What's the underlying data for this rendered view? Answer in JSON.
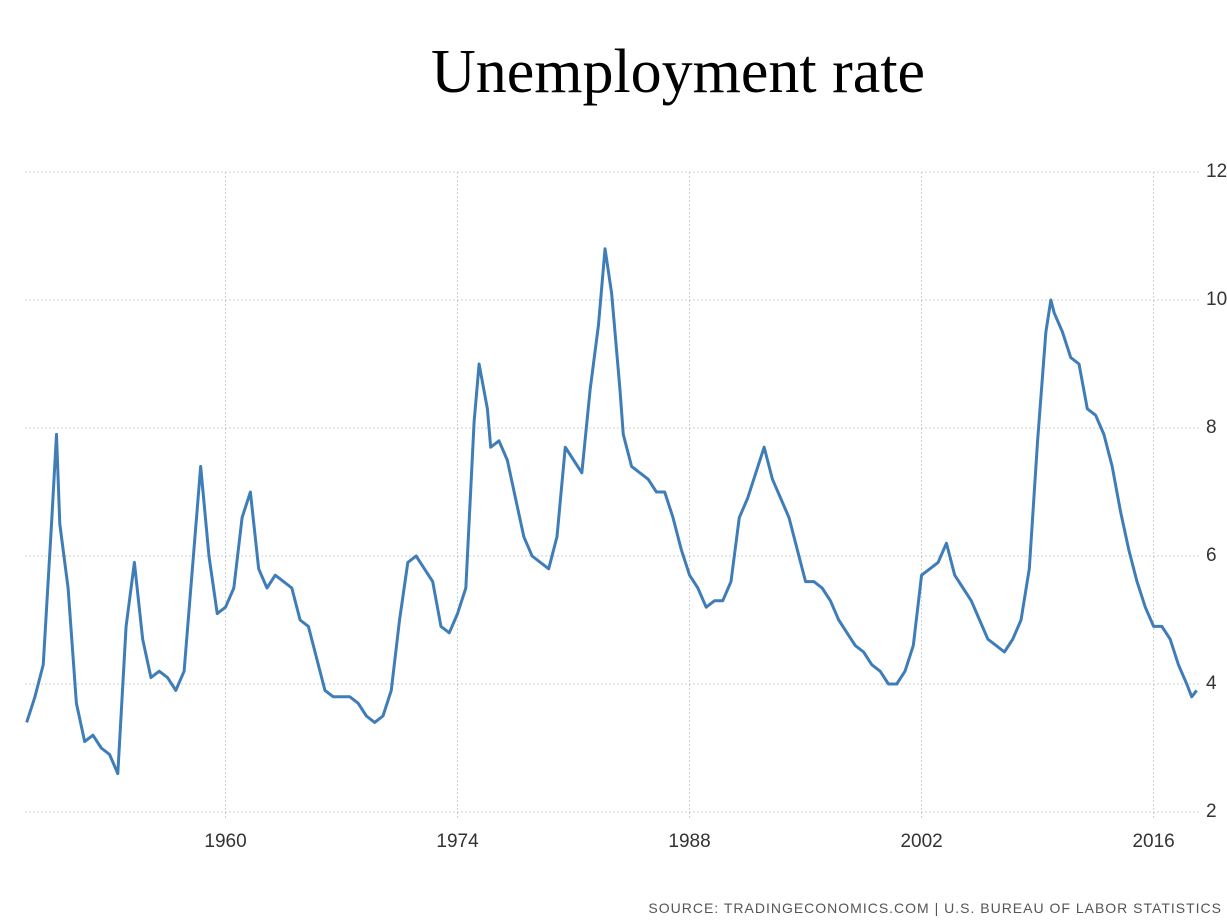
{
  "chart_data": {
    "type": "line",
    "title": "Unemployment rate",
    "source": "SOURCE: TRADINGECONOMICS.COM | U.S. BUREAU OF LABOR STATISTICS",
    "x": [
      1948.0,
      1948.5,
      1949.0,
      1949.5,
      1949.8,
      1950.0,
      1950.5,
      1951.0,
      1951.5,
      1952.0,
      1952.5,
      1953.0,
      1953.5,
      1954.0,
      1954.5,
      1955.0,
      1955.5,
      1956.0,
      1956.5,
      1957.0,
      1957.5,
      1958.0,
      1958.5,
      1959.0,
      1959.5,
      1960.0,
      1960.5,
      1961.0,
      1961.5,
      1962.0,
      1962.5,
      1963.0,
      1963.5,
      1964.0,
      1964.5,
      1965.0,
      1965.5,
      1966.0,
      1966.5,
      1967.0,
      1967.5,
      1968.0,
      1968.5,
      1969.0,
      1969.5,
      1970.0,
      1970.5,
      1971.0,
      1971.5,
      1972.0,
      1972.5,
      1973.0,
      1973.5,
      1974.0,
      1974.5,
      1975.0,
      1975.3,
      1975.8,
      1976.0,
      1976.5,
      1977.0,
      1977.5,
      1978.0,
      1978.5,
      1979.0,
      1979.5,
      1980.0,
      1980.5,
      1981.0,
      1981.5,
      1982.0,
      1982.5,
      1982.9,
      1983.3,
      1983.8,
      1984.0,
      1984.5,
      1985.0,
      1985.5,
      1986.0,
      1986.5,
      1987.0,
      1987.5,
      1988.0,
      1988.5,
      1989.0,
      1989.5,
      1990.0,
      1990.5,
      1991.0,
      1991.5,
      1992.0,
      1992.5,
      1993.0,
      1993.5,
      1994.0,
      1994.5,
      1995.0,
      1995.5,
      1996.0,
      1996.5,
      1997.0,
      1997.5,
      1998.0,
      1998.5,
      1999.0,
      1999.5,
      2000.0,
      2000.5,
      2001.0,
      2001.5,
      2002.0,
      2002.5,
      2003.0,
      2003.5,
      2004.0,
      2004.5,
      2005.0,
      2005.5,
      2006.0,
      2006.5,
      2007.0,
      2007.5,
      2008.0,
      2008.5,
      2009.0,
      2009.5,
      2009.8,
      2010.0,
      2010.5,
      2011.0,
      2011.5,
      2012.0,
      2012.5,
      2013.0,
      2013.5,
      2014.0,
      2014.5,
      2015.0,
      2015.5,
      2016.0,
      2016.5,
      2017.0,
      2017.5,
      2018.0,
      2018.3,
      2018.6
    ],
    "series": [
      {
        "name": "Unemployment rate",
        "color": "#3f7db8",
        "values": [
          3.4,
          3.8,
          4.3,
          6.5,
          7.9,
          6.5,
          5.5,
          3.7,
          3.1,
          3.2,
          3.0,
          2.9,
          2.6,
          4.9,
          5.9,
          4.7,
          4.1,
          4.2,
          4.1,
          3.9,
          4.2,
          5.8,
          7.4,
          6.0,
          5.1,
          5.2,
          5.5,
          6.6,
          7.0,
          5.8,
          5.5,
          5.7,
          5.6,
          5.5,
          5.0,
          4.9,
          4.4,
          3.9,
          3.8,
          3.8,
          3.8,
          3.7,
          3.5,
          3.4,
          3.5,
          3.9,
          5.0,
          5.9,
          6.0,
          5.8,
          5.6,
          4.9,
          4.8,
          5.1,
          5.5,
          8.1,
          9.0,
          8.3,
          7.7,
          7.8,
          7.5,
          6.9,
          6.3,
          6.0,
          5.9,
          5.8,
          6.3,
          7.7,
          7.5,
          7.3,
          8.6,
          9.6,
          10.8,
          10.1,
          8.6,
          7.9,
          7.4,
          7.3,
          7.2,
          7.0,
          7.0,
          6.6,
          6.1,
          5.7,
          5.5,
          5.2,
          5.3,
          5.3,
          5.6,
          6.6,
          6.9,
          7.3,
          7.7,
          7.2,
          6.9,
          6.6,
          6.1,
          5.6,
          5.6,
          5.5,
          5.3,
          5.0,
          4.8,
          4.6,
          4.5,
          4.3,
          4.2,
          4.0,
          4.0,
          4.2,
          4.6,
          5.7,
          5.8,
          5.9,
          6.2,
          5.7,
          5.5,
          5.3,
          5.0,
          4.7,
          4.6,
          4.5,
          4.7,
          5.0,
          5.8,
          7.8,
          9.5,
          10.0,
          9.8,
          9.5,
          9.1,
          9.0,
          8.3,
          8.2,
          7.9,
          7.4,
          6.7,
          6.1,
          5.6,
          5.2,
          4.9,
          4.9,
          4.7,
          4.3,
          4.0,
          3.8,
          3.9
        ]
      }
    ],
    "xlim": [
      1947.9,
      2018.8
    ],
    "ylim": [
      2,
      12
    ],
    "xticks": [
      1960,
      1974,
      1988,
      2002,
      2016
    ],
    "yticks": [
      2,
      4,
      6,
      8,
      10,
      12
    ],
    "grid": true
  }
}
